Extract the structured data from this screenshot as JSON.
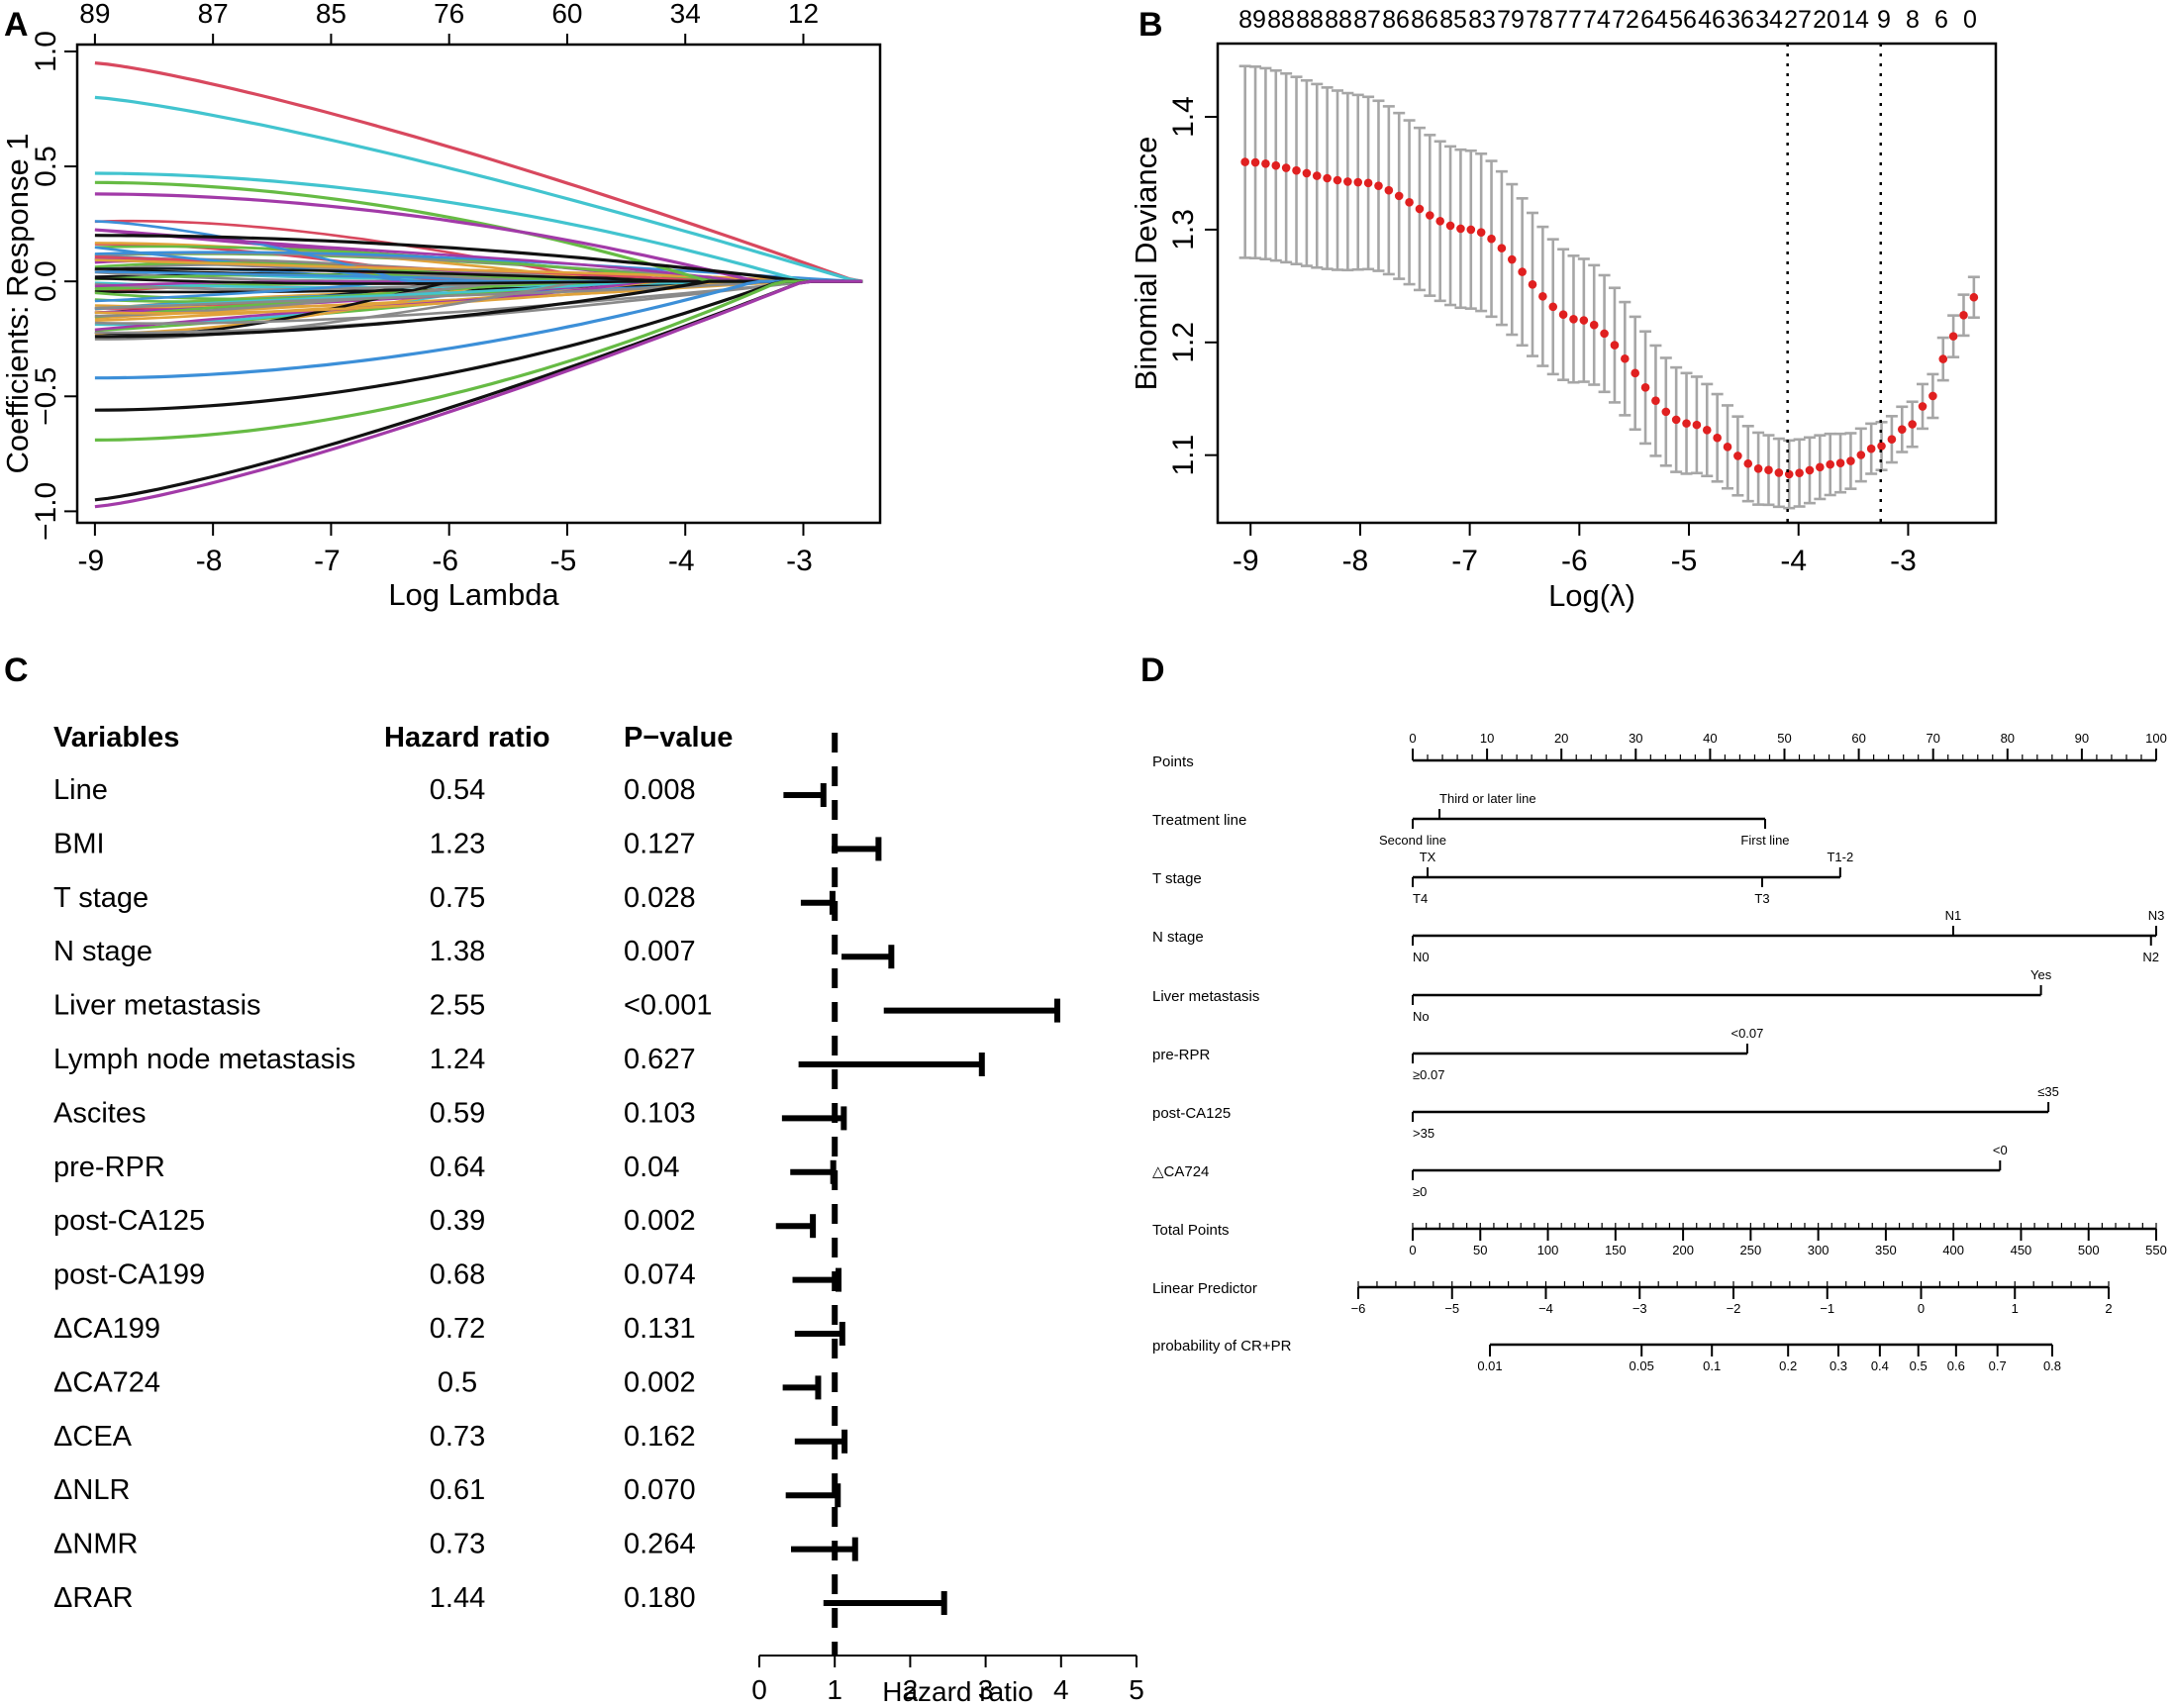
{
  "chart_data": [
    {
      "panel": "A",
      "type": "line",
      "title": "",
      "xlabel": "Log Lambda",
      "ylabel": "Coefficients: Response 1",
      "xlim": [
        -9.15,
        -2.35
      ],
      "ylim": [
        -1.05,
        1.03
      ],
      "x_ticks": [
        -9,
        -8,
        -7,
        -6,
        -5,
        -4,
        -3
      ],
      "y_ticks": [
        -1.0,
        -0.5,
        0.0,
        0.5,
        1.0
      ],
      "y_tick_labels": [
        "−1.0",
        "−0.5",
        "0.0",
        "0.5",
        "1.0"
      ],
      "top_axis_positions": [
        -9,
        -8,
        -7,
        -6,
        -5,
        -4,
        -3
      ],
      "top_axis_labels": [
        "89",
        "87",
        "85",
        "76",
        "60",
        "34",
        "12"
      ],
      "converge_x": -2.5,
      "num_background_paths": 62,
      "series": [
        {
          "name": "path-red-top",
          "color": "#d8485e",
          "start": 0.95,
          "shape": "top"
        },
        {
          "name": "path-cyan-top",
          "color": "#42c4cf",
          "start": 0.8,
          "shape": "top"
        },
        {
          "name": "path-cyan-2",
          "color": "#42c4cf",
          "start": 0.47,
          "shape": "mid"
        },
        {
          "name": "path-green-1",
          "color": "#66bb44",
          "start": 0.43,
          "shape": "mid"
        },
        {
          "name": "path-purple-1",
          "color": "#a23aa8",
          "start": 0.38,
          "shape": "mid"
        },
        {
          "name": "path-black-1",
          "color": "#111111",
          "start": 0.2,
          "shape": "mid"
        },
        {
          "name": "path-black-2",
          "color": "#111111",
          "start": -0.24,
          "shape": "mid"
        },
        {
          "name": "path-blue-low",
          "color": "#3c8fd8",
          "start": -0.42,
          "shape": "mid"
        },
        {
          "name": "path-black-low",
          "color": "#111111",
          "start": -0.56,
          "shape": "low"
        },
        {
          "name": "path-green-low",
          "color": "#66bb44",
          "start": -0.69,
          "shape": "low"
        },
        {
          "name": "path-black-bottom",
          "color": "#111111",
          "start": -0.95,
          "shape": "bottom"
        },
        {
          "name": "path-purple-bottom",
          "color": "#a23aa8",
          "start": -0.98,
          "shape": "bottom"
        }
      ],
      "palette": [
        "#111111",
        "#d8485e",
        "#66bb44",
        "#3c8fd8",
        "#42c4cf",
        "#a23aa8",
        "#e0a23a",
        "#8a8a8a"
      ]
    },
    {
      "panel": "B",
      "type": "scatter",
      "title": "",
      "xlabel": "Log(λ)",
      "ylabel": "Binomial Deviance",
      "xlim": [
        -9.3,
        -2.2
      ],
      "ylim": [
        1.04,
        1.465
      ],
      "x_ticks": [
        -9,
        -8,
        -7,
        -6,
        -5,
        -4,
        -3
      ],
      "y_ticks": [
        1.1,
        1.2,
        1.3,
        1.4
      ],
      "y_tick_labels": [
        "1.1",
        "1.2",
        "1.3",
        "1.4"
      ],
      "top_axis_labels": [
        "89",
        "88",
        "88",
        "88",
        "87",
        "86",
        "86",
        "85",
        "83",
        "79",
        "78",
        "77",
        "74",
        "72",
        "64",
        "56",
        "46",
        "36",
        "34",
        "27",
        "20",
        "14",
        "9",
        "8",
        "6",
        "0"
      ],
      "x_range_points": [
        -9.05,
        -2.4
      ],
      "n_points": 72,
      "curve_knots": [
        {
          "x": -9.05,
          "y": 1.36
        },
        {
          "x": -8.0,
          "y": 1.342
        },
        {
          "x": -7.0,
          "y": 1.3
        },
        {
          "x": -6.0,
          "y": 1.22
        },
        {
          "x": -5.0,
          "y": 1.128
        },
        {
          "x": -4.3,
          "y": 1.087
        },
        {
          "x": -4.1,
          "y": 1.083
        },
        {
          "x": -3.6,
          "y": 1.093
        },
        {
          "x": -3.25,
          "y": 1.108
        },
        {
          "x": -3.0,
          "y": 1.125
        },
        {
          "x": -2.8,
          "y": 1.15
        },
        {
          "x": -2.6,
          "y": 1.205
        },
        {
          "x": -2.4,
          "y": 1.24
        }
      ],
      "error_half_width": [
        {
          "x": -9.05,
          "e": 0.085
        },
        {
          "x": -7.0,
          "e": 0.07
        },
        {
          "x": -5.5,
          "e": 0.05
        },
        {
          "x": -4.1,
          "e": 0.03
        },
        {
          "x": -3.0,
          "e": 0.02
        },
        {
          "x": -2.4,
          "e": 0.018
        }
      ],
      "vlines": [
        -4.1,
        -3.25
      ],
      "point_color": "#e02020",
      "errorbar_color": "#a6a6a6"
    },
    {
      "panel": "C",
      "type": "forest",
      "xlabel": "Hazard ratio",
      "xlim": [
        0,
        5
      ],
      "x_ticks": [
        0,
        1,
        2,
        3,
        4,
        5
      ],
      "reference": 1,
      "header": {
        "variables": "Variables",
        "hr": "Hazard ratio",
        "p": "P−value"
      },
      "rows": [
        {
          "variable": "Line",
          "hr_label": "0.54",
          "p": "0.008",
          "hr": 0.54,
          "lo": 0.32,
          "hi": 0.85
        },
        {
          "variable": "BMI",
          "hr_label": "1.23",
          "p": "0.127",
          "hr": 1.23,
          "lo": 0.96,
          "hi": 1.58
        },
        {
          "variable": "T stage",
          "hr_label": "0.75",
          "p": "0.028",
          "hr": 0.75,
          "lo": 0.55,
          "hi": 0.97
        },
        {
          "variable": "N stage",
          "hr_label": "1.38",
          "p": "0.007",
          "hr": 1.38,
          "lo": 1.09,
          "hi": 1.75
        },
        {
          "variable": "Liver metastasis",
          "hr_label": "2.55",
          "p": "<0.001",
          "hr": 2.55,
          "lo": 1.65,
          "hi": 3.95
        },
        {
          "variable": "Lymph node metastasis",
          "hr_label": "1.24",
          "p": "0.627",
          "hr": 1.24,
          "lo": 0.52,
          "hi": 2.95
        },
        {
          "variable": "Ascites",
          "hr_label": "0.59",
          "p": "0.103",
          "hr": 0.59,
          "lo": 0.3,
          "hi": 1.12
        },
        {
          "variable": "pre-RPR",
          "hr_label": "0.64",
          "p": "0.04",
          "hr": 0.64,
          "lo": 0.41,
          "hi": 0.98
        },
        {
          "variable": "post-CA125",
          "hr_label": "0.39",
          "p": "0.002",
          "hr": 0.39,
          "lo": 0.22,
          "hi": 0.71
        },
        {
          "variable": "post-CA199",
          "hr_label": "0.68",
          "p": "0.074",
          "hr": 0.68,
          "lo": 0.44,
          "hi": 1.05
        },
        {
          "variable": "ΔCA199",
          "hr_label": "0.72",
          "p": "0.131",
          "hr": 0.72,
          "lo": 0.47,
          "hi": 1.1
        },
        {
          "variable": "ΔCA724",
          "hr_label": "0.5",
          "p": "0.002",
          "hr": 0.5,
          "lo": 0.31,
          "hi": 0.78
        },
        {
          "variable": "ΔCEA",
          "hr_label": "0.73",
          "p": "0.162",
          "hr": 0.73,
          "lo": 0.47,
          "hi": 1.13
        },
        {
          "variable": "ΔNLR",
          "hr_label": "0.61",
          "p": "0.070",
          "hr": 0.61,
          "lo": 0.35,
          "hi": 1.04
        },
        {
          "variable": "ΔNMR",
          "hr_label": "0.73",
          "p": "0.264",
          "hr": 0.73,
          "lo": 0.42,
          "hi": 1.27
        },
        {
          "variable": "ΔRAR",
          "hr_label": "1.44",
          "p": "0.180",
          "hr": 1.44,
          "lo": 0.85,
          "hi": 2.45
        }
      ]
    },
    {
      "panel": "D",
      "type": "nomogram",
      "rows": [
        {
          "label": "Points",
          "kind": "scale",
          "axis_min": 0,
          "axis_max": 100,
          "line": [
            0,
            100
          ],
          "major": [
            0,
            10,
            20,
            30,
            40,
            50,
            60,
            70,
            80,
            90,
            100
          ],
          "major_labels": [
            "0",
            "10",
            "20",
            "30",
            "40",
            "50",
            "60",
            "70",
            "80",
            "90",
            "100"
          ],
          "minor_step": 2
        },
        {
          "label": "Treatment line",
          "kind": "variable",
          "axis_min": 0,
          "axis_max": 100,
          "line": [
            0,
            47.4
          ],
          "ticks": [
            {
              "v": 0,
              "text": "Second line",
              "side": "below",
              "anchor": "middle"
            },
            {
              "v": 3.6,
              "text": "Third or later line",
              "side": "above",
              "anchor": "start"
            },
            {
              "v": 47.4,
              "text": "First line",
              "side": "below",
              "anchor": "middle"
            }
          ]
        },
        {
          "label": "T stage",
          "kind": "variable",
          "axis_min": 0,
          "axis_max": 100,
          "line": [
            0,
            57.5
          ],
          "ticks": [
            {
              "v": 0,
              "text": "T4",
              "side": "below",
              "anchor": "start"
            },
            {
              "v": 2.0,
              "text": "TX",
              "side": "above",
              "anchor": "middle"
            },
            {
              "v": 47,
              "text": "T3",
              "side": "below",
              "anchor": "middle"
            },
            {
              "v": 57.5,
              "text": "T1-2",
              "side": "above",
              "anchor": "middle"
            }
          ]
        },
        {
          "label": "N stage",
          "kind": "variable",
          "axis_min": 0,
          "axis_max": 100,
          "line": [
            0,
            100
          ],
          "ticks": [
            {
              "v": 0,
              "text": "N0",
              "side": "below",
              "anchor": "start"
            },
            {
              "v": 72.7,
              "text": "N1",
              "side": "above",
              "anchor": "middle"
            },
            {
              "v": 99.3,
              "text": "N2",
              "side": "below",
              "anchor": "middle"
            },
            {
              "v": 100,
              "text": "N3",
              "side": "above",
              "anchor": "middle"
            }
          ]
        },
        {
          "label": "Liver metastasis",
          "kind": "variable",
          "axis_min": 0,
          "axis_max": 100,
          "line": [
            0,
            84.5
          ],
          "ticks": [
            {
              "v": 0,
              "text": "No",
              "side": "below",
              "anchor": "start"
            },
            {
              "v": 84.5,
              "text": "Yes",
              "side": "above",
              "anchor": "middle"
            }
          ]
        },
        {
          "label": "pre-RPR",
          "kind": "variable",
          "axis_min": 0,
          "axis_max": 100,
          "line": [
            0,
            45
          ],
          "ticks": [
            {
              "v": 0,
              "text": "≥0.07",
              "side": "below",
              "anchor": "start"
            },
            {
              "v": 45,
              "text": "<0.07",
              "side": "above",
              "anchor": "middle"
            }
          ]
        },
        {
          "label": "post-CA125",
          "kind": "variable",
          "axis_min": 0,
          "axis_max": 100,
          "line": [
            0,
            85.5
          ],
          "ticks": [
            {
              "v": 0,
              "text": ">35",
              "side": "below",
              "anchor": "start"
            },
            {
              "v": 85.5,
              "text": "≤35",
              "side": "above",
              "anchor": "middle"
            }
          ]
        },
        {
          "label": "△CA724",
          "kind": "variable",
          "axis_min": 0,
          "axis_max": 100,
          "line": [
            0,
            79
          ],
          "ticks": [
            {
              "v": 0,
              "text": "≥0",
              "side": "below",
              "anchor": "start"
            },
            {
              "v": 79,
              "text": "<0",
              "side": "above",
              "anchor": "middle"
            }
          ]
        },
        {
          "label": "Total Points",
          "kind": "scale",
          "axis_min": 0,
          "axis_max": 550,
          "line": [
            0,
            550
          ],
          "major": [
            0,
            50,
            100,
            150,
            200,
            250,
            300,
            350,
            400,
            450,
            500,
            550
          ],
          "major_labels": [
            "0",
            "50",
            "100",
            "150",
            "200",
            "250",
            "300",
            "350",
            "400",
            "450",
            "500",
            "550"
          ],
          "minor_step": 10
        },
        {
          "label": "Linear Predictor",
          "kind": "scale",
          "axis_min": -6.575,
          "axis_max": 2.42,
          "line": [
            -6,
            2
          ],
          "major": [
            -6,
            -5,
            -4,
            -3,
            -2,
            -1,
            0,
            1,
            2
          ],
          "major_labels": [
            "−6",
            "−5",
            "−4",
            "−3",
            "−2",
            "−1",
            "0",
            "1",
            "2"
          ],
          "minor_step": 0.2
        },
        {
          "label": "probability of CR+PR",
          "kind": "scale",
          "axis_min": 0,
          "axis_max": 100,
          "line": [
            10.5,
            86.5
          ],
          "major": [
            10.5,
            31.0,
            40.5,
            50.8,
            57.6,
            63.2,
            68.4,
            73.5,
            79.1,
            86.5
          ],
          "major_labels": [
            "0.01",
            "0.05",
            "0.1",
            "0.2",
            "0.3",
            "0.4",
            "0.5",
            "0.6",
            "0.7",
            "0.8"
          ],
          "minor_step": 0
        }
      ]
    }
  ],
  "panel_labels": {
    "a": "A",
    "b": "B",
    "c": "C",
    "d": "D"
  }
}
